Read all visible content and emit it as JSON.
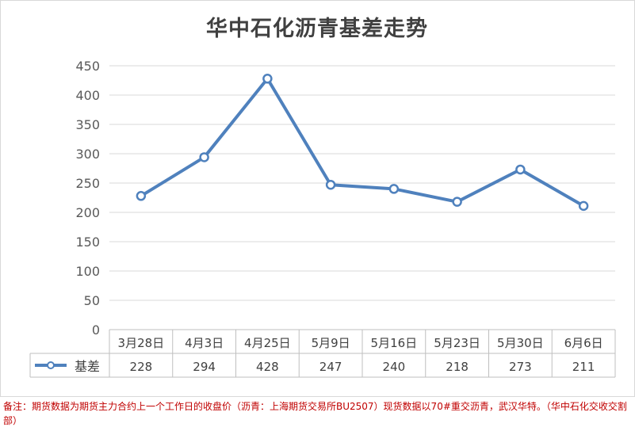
{
  "chart_data": {
    "type": "line",
    "title": "华中石化沥青基差走势",
    "categories": [
      "3月28日",
      "4月3日",
      "4月25日",
      "5月9日",
      "5月16日",
      "5月23日",
      "5月30日",
      "6月6日"
    ],
    "series": [
      {
        "name": "基差",
        "values": [
          228,
          294,
          428,
          247,
          240,
          218,
          273,
          211
        ],
        "color": "#4f81bd"
      }
    ],
    "y_ticks": [
      "0",
      "50",
      "100",
      "150",
      "200",
      "250",
      "300",
      "350",
      "400",
      "450"
    ],
    "ylim": [
      0,
      450
    ],
    "grid": true,
    "legend": "data-table-left"
  },
  "footnote": "备注：期货数据为期货主力合约上一个工作日的收盘价（沥青：上海期货交易所BU2507）现货数据以70#重交沥青，武汉华特。（华中石化交收交割部）"
}
